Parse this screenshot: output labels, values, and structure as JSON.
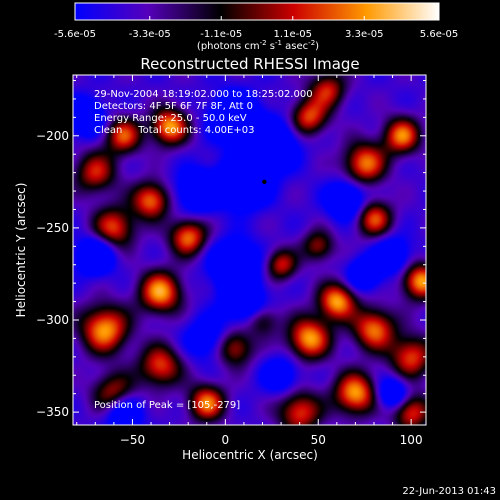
{
  "chart_data": {
    "type": "heatmap",
    "title": "Reconstructed RHESSI Image",
    "xlabel": "Heliocentric X (arcsec)",
    "ylabel": "Heliocentric Y (arcsec)",
    "x_ticks": [
      -50,
      0,
      50,
      100
    ],
    "y_ticks": [
      -200,
      -250,
      -300,
      -350
    ],
    "xlim": [
      -82,
      108
    ],
    "ylim": [
      -357,
      -167
    ],
    "colorbar": {
      "ticks": [
        "-5.6e-05",
        "-3.3e-05",
        "-1.1e-05",
        "1.1e-05",
        "3.3e-05",
        "5.6e-05"
      ],
      "range": [
        -5.6e-05,
        5.6e-05
      ],
      "units_label": "(photons cm",
      "units_exp1": "-2",
      "units_mid": " s",
      "units_exp2": "-1",
      "units_mid2": " asec",
      "units_exp3": "-2",
      "units_end": ")",
      "colormap": [
        "#0000ff",
        "#5500bb",
        "#000000",
        "#cc0000",
        "#ff9900",
        "#ffffff"
      ]
    },
    "annotations": [
      "29-Nov-2004 18:19:02.000 to 18:25:02.000",
      "Detectors: 4F 5F 6F 7F 8F, Att 0",
      "Energy Range: 25.0 - 50.0 keV",
      "Clean     Total counts: 4.00E+03"
    ],
    "peak_label": "Position of Peak = [105,-279]",
    "peak": [
      105,
      -279
    ],
    "marker": [
      21,
      -225
    ],
    "grid": false,
    "sources": [
      {
        "x": -30,
        "y": -195,
        "a": 1.0,
        "s": 7
      },
      {
        "x": -55,
        "y": -200,
        "a": 0.8,
        "s": 7
      },
      {
        "x": -70,
        "y": -220,
        "a": 0.7,
        "s": 8
      },
      {
        "x": -40,
        "y": -235,
        "a": 0.9,
        "s": 7
      },
      {
        "x": -60,
        "y": -250,
        "a": 0.8,
        "s": 8
      },
      {
        "x": -20,
        "y": -255,
        "a": 0.9,
        "s": 7
      },
      {
        "x": -35,
        "y": -285,
        "a": 1.0,
        "s": 8
      },
      {
        "x": -65,
        "y": -305,
        "a": 1.0,
        "s": 9
      },
      {
        "x": -35,
        "y": -325,
        "a": 0.8,
        "s": 8
      },
      {
        "x": -10,
        "y": -345,
        "a": 0.9,
        "s": 7
      },
      {
        "x": -60,
        "y": -340,
        "a": 0.7,
        "s": 8
      },
      {
        "x": 5,
        "y": -315,
        "a": 0.7,
        "s": 7
      },
      {
        "x": 20,
        "y": -300,
        "a": 0.5,
        "s": 6
      },
      {
        "x": 45,
        "y": -190,
        "a": 0.8,
        "s": 7
      },
      {
        "x": 55,
        "y": -175,
        "a": 0.7,
        "s": 7
      },
      {
        "x": 75,
        "y": -215,
        "a": 0.9,
        "s": 8
      },
      {
        "x": 95,
        "y": -200,
        "a": 0.9,
        "s": 7
      },
      {
        "x": 80,
        "y": -245,
        "a": 0.8,
        "s": 7
      },
      {
        "x": 50,
        "y": -260,
        "a": 0.6,
        "s": 6
      },
      {
        "x": 30,
        "y": -270,
        "a": 0.7,
        "s": 6
      },
      {
        "x": 60,
        "y": -290,
        "a": 1.0,
        "s": 7
      },
      {
        "x": 45,
        "y": -310,
        "a": 1.0,
        "s": 8
      },
      {
        "x": 80,
        "y": -305,
        "a": 0.9,
        "s": 8
      },
      {
        "x": 105,
        "y": -279,
        "a": 1.0,
        "s": 7
      },
      {
        "x": 100,
        "y": -320,
        "a": 0.8,
        "s": 8
      },
      {
        "x": 70,
        "y": -340,
        "a": 1.0,
        "s": 8
      },
      {
        "x": 40,
        "y": -350,
        "a": 0.8,
        "s": 8
      },
      {
        "x": 100,
        "y": -350,
        "a": 0.8,
        "s": 7
      },
      {
        "x": 10,
        "y": -225,
        "a": -1.0,
        "s": 9
      },
      {
        "x": 25,
        "y": -205,
        "a": -0.9,
        "s": 9
      },
      {
        "x": 5,
        "y": -190,
        "a": -0.8,
        "s": 9
      },
      {
        "x": -15,
        "y": -230,
        "a": -0.7,
        "s": 8
      },
      {
        "x": 5,
        "y": -270,
        "a": -0.8,
        "s": 9
      },
      {
        "x": 10,
        "y": -290,
        "a": -0.7,
        "s": 8
      },
      {
        "x": -70,
        "y": -265,
        "a": -0.8,
        "s": 7
      },
      {
        "x": -75,
        "y": -190,
        "a": -0.7,
        "s": 7
      },
      {
        "x": -55,
        "y": -350,
        "a": -0.7,
        "s": 7
      },
      {
        "x": 65,
        "y": -235,
        "a": -0.8,
        "s": 7
      },
      {
        "x": 90,
        "y": -265,
        "a": -0.6,
        "s": 7
      },
      {
        "x": 30,
        "y": -330,
        "a": -0.5,
        "s": 7
      },
      {
        "x": -10,
        "y": -310,
        "a": -0.5,
        "s": 8
      },
      {
        "x": 90,
        "y": -340,
        "a": -0.7,
        "s": 6
      },
      {
        "x": 75,
        "y": -275,
        "a": -0.7,
        "s": 6
      }
    ]
  },
  "timestamp": "22-Jun-2013 01:43"
}
